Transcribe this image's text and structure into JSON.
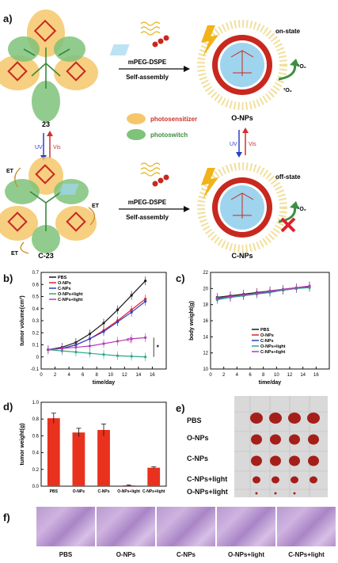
{
  "panel_a": {
    "letter": "a)",
    "molecule_top": "23",
    "molecule_bottom": "C-23",
    "reagent_top": "mPEG-DSPE",
    "process_top": "Self-assembly",
    "reagent_bottom": "mPEG-DSPE",
    "process_bottom": "Self-assembly",
    "np_top": "O-NPs",
    "np_bottom": "C-NPs",
    "state_top": "on-state",
    "state_bottom": "off-state",
    "singlet_o2": "¹O₂",
    "triplet_o2": "³O₂",
    "singlet_o2_bottom": "¹O₂",
    "uv": "UV",
    "vis": "Vis",
    "uv2": "UV",
    "vis2": "Vis",
    "legend_photosensitizer": "photosensitizer",
    "legend_photoswitch": "photoswitch",
    "et": "ET",
    "colors": {
      "photosensitizer": "#f5c76b",
      "photoswitch": "#7fc27a",
      "red_text": "#d0302a",
      "green_text": "#3b8f3e"
    }
  },
  "chart_data": [
    {
      "id": "b",
      "type": "line",
      "letter": "b)",
      "xlabel": "time/day",
      "ylabel": "tumor volume(cm³)",
      "xlim": [
        0,
        18
      ],
      "ylim": [
        -0.1,
        0.7
      ],
      "xticks": [
        0,
        2,
        4,
        6,
        8,
        10,
        12,
        14,
        16
      ],
      "yticks": [
        -0.1,
        0.0,
        0.1,
        0.2,
        0.3,
        0.4,
        0.5,
        0.6,
        0.7
      ],
      "x": [
        1,
        3,
        5,
        7,
        9,
        11,
        13,
        15
      ],
      "series": [
        {
          "name": "PBS",
          "color": "#1a1a1a",
          "values": [
            0.06,
            0.08,
            0.12,
            0.19,
            0.28,
            0.39,
            0.51,
            0.63
          ]
        },
        {
          "name": "O-NPs",
          "color": "#e0202a",
          "values": [
            0.06,
            0.07,
            0.1,
            0.15,
            0.22,
            0.3,
            0.39,
            0.48
          ]
        },
        {
          "name": "C-NPs",
          "color": "#2a3fc8",
          "values": [
            0.06,
            0.07,
            0.1,
            0.15,
            0.21,
            0.29,
            0.37,
            0.46
          ]
        },
        {
          "name": "O-NPs+light",
          "color": "#2aa88a",
          "values": [
            0.06,
            0.05,
            0.04,
            0.03,
            0.02,
            0.01,
            0.005,
            0.0
          ]
        },
        {
          "name": "C-NPs+light",
          "color": "#b43cb4",
          "values": [
            0.06,
            0.07,
            0.08,
            0.09,
            0.11,
            0.13,
            0.15,
            0.16
          ]
        }
      ],
      "annotation": "e)",
      "significance": "*"
    },
    {
      "id": "c",
      "type": "line",
      "letter": "c)",
      "xlabel": "time/day",
      "ylabel": "body weight(g)",
      "xlim": [
        0,
        18
      ],
      "ylim": [
        10,
        22
      ],
      "xticks": [
        0,
        2,
        4,
        6,
        8,
        10,
        12,
        14,
        16
      ],
      "yticks": [
        10,
        12,
        14,
        16,
        18,
        20,
        22
      ],
      "x": [
        1,
        3,
        5,
        7,
        9,
        11,
        13,
        15
      ],
      "series": [
        {
          "name": "PBS",
          "color": "#1a1a1a",
          "values": [
            18.9,
            19.1,
            19.3,
            19.5,
            19.7,
            19.9,
            20.1,
            20.3
          ]
        },
        {
          "name": "O-NPs",
          "color": "#e0202a",
          "values": [
            18.8,
            19.0,
            19.2,
            19.4,
            19.6,
            19.8,
            20.0,
            20.2
          ]
        },
        {
          "name": "C-NPs",
          "color": "#2a3fc8",
          "values": [
            18.7,
            18.9,
            19.1,
            19.4,
            19.6,
            19.8,
            20.0,
            20.2
          ]
        },
        {
          "name": "O-NPs+light",
          "color": "#2aa88a",
          "values": [
            18.6,
            18.9,
            19.1,
            19.3,
            19.5,
            19.8,
            20.0,
            20.1
          ]
        },
        {
          "name": "C-NPs+light",
          "color": "#b43cb4",
          "values": [
            18.8,
            19.0,
            19.2,
            19.4,
            19.7,
            19.9,
            20.1,
            20.3
          ]
        }
      ]
    },
    {
      "id": "d",
      "type": "bar",
      "letter": "d)",
      "ylabel": "tumor weight(g)",
      "ylim": [
        0.0,
        1.0
      ],
      "yticks": [
        0.0,
        0.2,
        0.4,
        0.6,
        0.8,
        1.0
      ],
      "categories": [
        "PBS",
        "O-NPs",
        "C-NPs",
        "O-NPs+light",
        "C-NPs+light"
      ],
      "values": [
        0.81,
        0.64,
        0.67,
        0.01,
        0.22
      ],
      "errors": [
        0.06,
        0.05,
        0.07,
        0.005,
        0.01
      ],
      "bar_color": "#e8321e"
    }
  ],
  "panel_e": {
    "letter": "e)",
    "rows": [
      "PBS",
      "O-NPs",
      "C-NPs",
      "C-NPs+light",
      "O-NPs+light"
    ]
  },
  "panel_f": {
    "letter": "f)",
    "labels": [
      "PBS",
      "O-NPs",
      "C-NPs",
      "O-NPs+light",
      "C-NPs+light"
    ]
  }
}
